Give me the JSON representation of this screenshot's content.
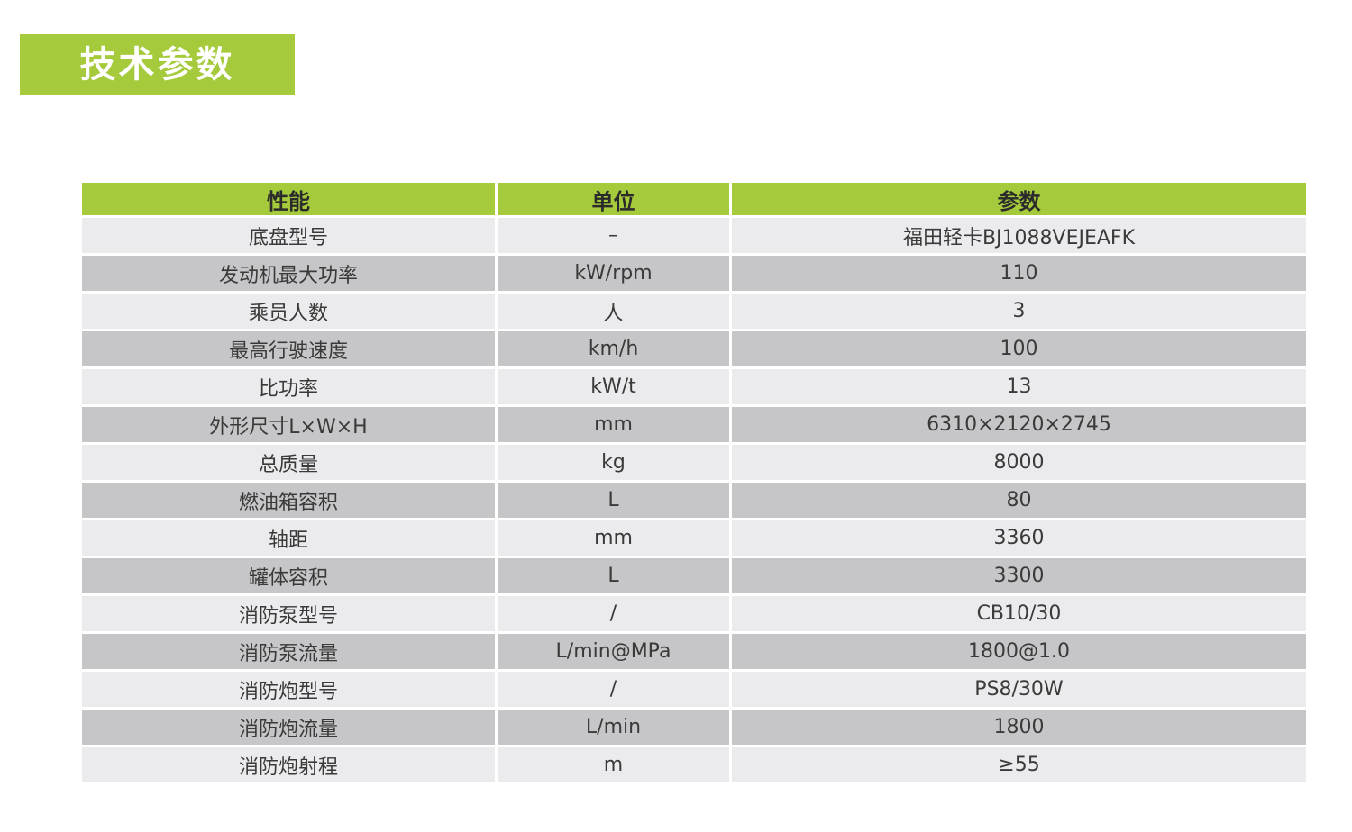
{
  "title": "技术参数",
  "colors": {
    "accent_green": "#a5ca3c",
    "row_light": "#ebebed",
    "row_dark": "#c6c6c8",
    "title_text": "#ffffff",
    "header_text": "#2b2b2b",
    "cell_text": "#3a3a3a"
  },
  "table": {
    "headers": [
      "性能",
      "单位",
      "参数"
    ],
    "rows": [
      {
        "name": "底盘型号",
        "unit": "–",
        "value": "福田轻卡BJ1088VEJEAFK"
      },
      {
        "name": "发动机最大功率",
        "unit": "kW/rpm",
        "value": "110"
      },
      {
        "name": "乘员人数",
        "unit": "人",
        "value": "3"
      },
      {
        "name": "最高行驶速度",
        "unit": "km/h",
        "value": "100"
      },
      {
        "name": "比功率",
        "unit": "kW/t",
        "value": "13"
      },
      {
        "name": "外形尺寸L×W×H",
        "unit": "mm",
        "value": "6310×2120×2745"
      },
      {
        "name": "总质量",
        "unit": "kg",
        "value": "8000"
      },
      {
        "name": "燃油箱容积",
        "unit": "L",
        "value": "80"
      },
      {
        "name": "轴距",
        "unit": "mm",
        "value": "3360"
      },
      {
        "name": "罐体容积",
        "unit": "L",
        "value": "3300"
      },
      {
        "name": "消防泵型号",
        "unit": "/",
        "value": "CB10/30"
      },
      {
        "name": "消防泵流量",
        "unit": "L/min@MPa",
        "value": "1800@1.0"
      },
      {
        "name": "消防炮型号",
        "unit": "/",
        "value": "PS8/30W"
      },
      {
        "name": "消防炮流量",
        "unit": "L/min",
        "value": "1800"
      },
      {
        "name": "消防炮射程",
        "unit": "m",
        "value": "≥55"
      }
    ]
  }
}
